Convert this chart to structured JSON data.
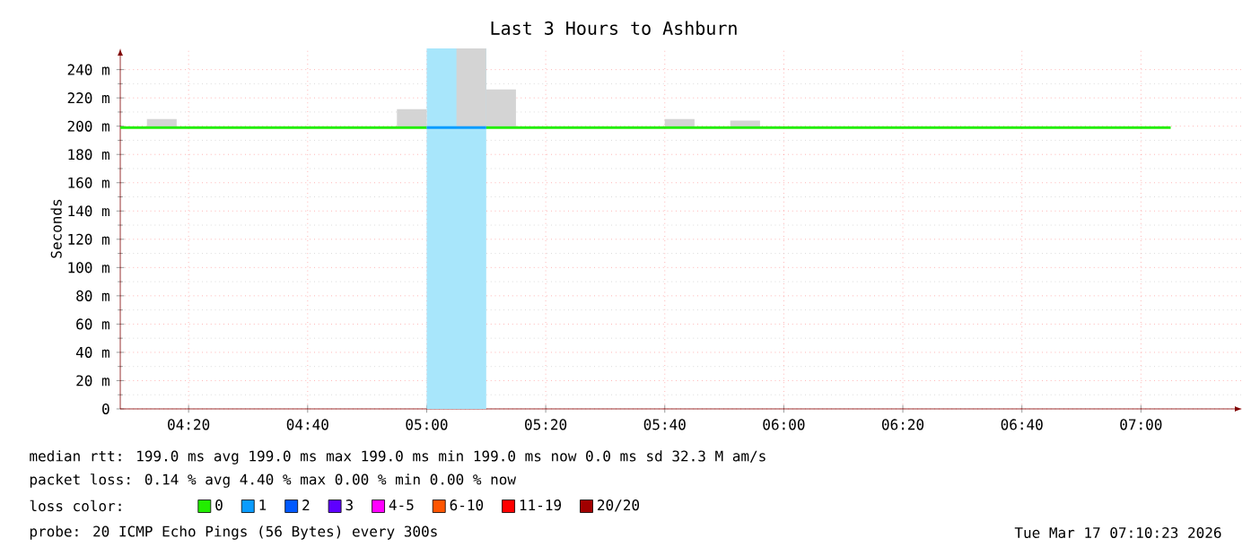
{
  "chart_data": {
    "type": "line",
    "title": "Last 3 Hours to Ashburn",
    "ylabel": "Seconds",
    "xlim": [
      4.142,
      7.283
    ],
    "ylim": [
      0,
      255
    ],
    "xticks": [
      {
        "value": 4.3333,
        "label": "04:20"
      },
      {
        "value": 4.6667,
        "label": "04:40"
      },
      {
        "value": 5,
        "label": "05:00"
      },
      {
        "value": 5.3333,
        "label": "05:20"
      },
      {
        "value": 5.6667,
        "label": "05:40"
      },
      {
        "value": 6,
        "label": "06:00"
      },
      {
        "value": 6.3333,
        "label": "06:20"
      },
      {
        "value": 6.6667,
        "label": "06:40"
      },
      {
        "value": 7,
        "label": "07:00"
      }
    ],
    "yticks": [
      0,
      {
        "value": 20,
        "label": "20 m"
      },
      {
        "value": 40,
        "label": "40 m"
      },
      {
        "value": 60,
        "label": "60 m"
      },
      {
        "value": 80,
        "label": "80 m"
      },
      {
        "value": 100,
        "label": "100 m"
      },
      {
        "value": 120,
        "label": "120 m"
      },
      {
        "value": 140,
        "label": "140 m"
      },
      {
        "value": 160,
        "label": "160 m"
      },
      {
        "value": 180,
        "label": "180 m"
      },
      {
        "value": 200,
        "label": "200 m"
      },
      {
        "value": 220,
        "label": "220 m"
      },
      {
        "value": 240,
        "label": "240 m"
      }
    ],
    "grid": true,
    "legend": "bottom",
    "legend_title": "loss color:",
    "bands": [
      {
        "axis": "x",
        "from": 5.0,
        "to": 5.1667,
        "color": "#a8e6fb"
      }
    ],
    "series": [
      {
        "type": "bar",
        "color": "#d4d4d4",
        "x": [
          4.2583,
          4.9583,
          5.125,
          5.2083,
          5.7083,
          5.8917
        ],
        "base": [
          199,
          199,
          199,
          199,
          199,
          199
        ],
        "values": [
          6,
          13,
          56,
          27,
          6,
          5
        ]
      },
      {
        "name": "0",
        "color": "#22ee00",
        "x": [
          4.142,
          5.0,
          5.0833,
          5.1667,
          7.0833
        ],
        "values": [
          199,
          199,
          null,
          199,
          199
        ]
      },
      {
        "name": "1",
        "color": "#0a9cff",
        "x": [
          5.0,
          5.1667
        ],
        "values": [
          199,
          199
        ]
      },
      {
        "name": "2",
        "color": "#0059ff"
      },
      {
        "name": "3",
        "color": "#5e00ff"
      },
      {
        "name": "4-5",
        "color": "#ff00fe"
      },
      {
        "name": "6-10",
        "color": "#ff5500"
      },
      {
        "name": "11-19",
        "color": "#ff0000"
      },
      {
        "name": "20/20",
        "color": "#a10000"
      }
    ],
    "annotations": [
      "median rtt:  199.0 ms avg  199.0 ms max  199.0 ms min  199.0 ms now  0.0 ms sd  32.3 M am/s",
      "packet loss: 0.14 % avg  4.40 % max  0.00 % min  0.00 % now",
      "probe:       20 ICMP Echo Pings (56 Bytes) every 300s",
      "Tue Mar 17 07:10:23 2026"
    ]
  }
}
